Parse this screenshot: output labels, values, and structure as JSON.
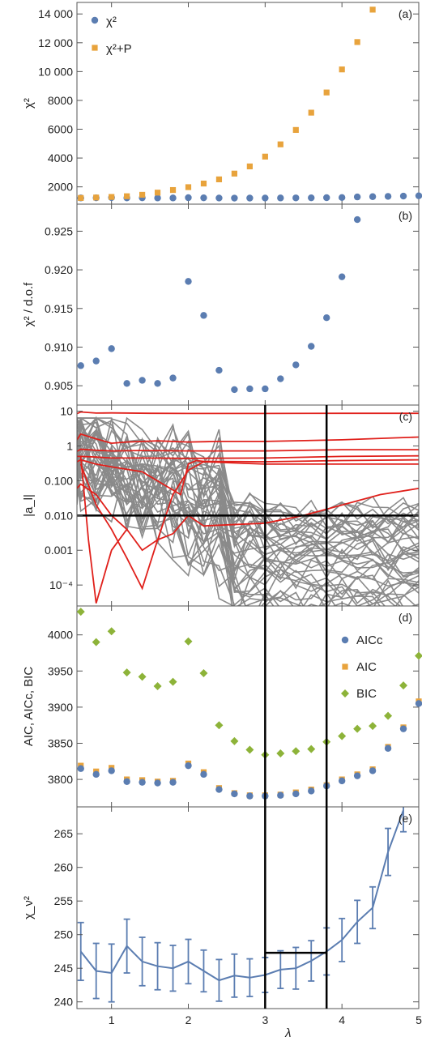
{
  "chart_data": [
    {
      "id": "a",
      "type": "scatter",
      "panel_label": "(a)",
      "ylabel": "χ²",
      "xlim": [
        0.55,
        5.0
      ],
      "ylim": [
        800,
        14800
      ],
      "yticks": [
        2000,
        4000,
        6000,
        8000,
        10000,
        12000,
        14000
      ],
      "ytick_labels": [
        "2000",
        "4000",
        "6000",
        "8000",
        "10 000",
        "12 000",
        "14 000"
      ],
      "legend_position": "top-left",
      "series": [
        {
          "name": "χ²",
          "marker": "circle",
          "color": "#5B7DB1",
          "x": [
            0.6,
            0.8,
            1.0,
            1.2,
            1.4,
            1.6,
            1.8,
            2.0,
            2.2,
            2.4,
            2.6,
            2.8,
            3.0,
            3.2,
            3.4,
            3.6,
            3.8,
            4.0,
            4.2,
            4.4,
            4.6,
            4.8,
            5.0
          ],
          "y": [
            1230,
            1240,
            1255,
            1235,
            1240,
            1230,
            1230,
            1250,
            1240,
            1225,
            1220,
            1222,
            1225,
            1230,
            1235,
            1240,
            1250,
            1260,
            1300,
            1320,
            1340,
            1360,
            1380
          ]
        },
        {
          "name": "χ²+P",
          "marker": "square",
          "color": "#E8A33C",
          "x": [
            0.6,
            0.8,
            1.0,
            1.2,
            1.4,
            1.6,
            1.8,
            2.0,
            2.2,
            2.4,
            2.6,
            2.8,
            3.0,
            3.2,
            3.4,
            3.6,
            3.8,
            4.0,
            4.2,
            4.4
          ],
          "y": [
            1230,
            1260,
            1300,
            1350,
            1450,
            1600,
            1780,
            1980,
            2230,
            2520,
            2920,
            3420,
            4100,
            4950,
            5950,
            7150,
            8550,
            10150,
            12050,
            14300
          ]
        }
      ]
    },
    {
      "id": "b",
      "type": "scatter",
      "panel_label": "(b)",
      "ylabel": "χ² / d.o.f",
      "xlim": [
        0.55,
        5.0
      ],
      "ylim": [
        0.9025,
        0.9285
      ],
      "yticks": [
        0.905,
        0.91,
        0.915,
        0.92,
        0.925
      ],
      "ytick_labels": [
        "0.905",
        "0.910",
        "0.915",
        "0.920",
        "0.925"
      ],
      "series": [
        {
          "marker": "circle",
          "color": "#5B7DB1",
          "x": [
            0.6,
            0.8,
            1.0,
            1.2,
            1.4,
            1.6,
            1.8,
            2.0,
            2.2,
            2.4,
            2.6,
            2.8,
            3.0,
            3.2,
            3.4,
            3.6,
            3.8,
            4.0,
            4.2
          ],
          "y": [
            0.9076,
            0.9082,
            0.9098,
            0.9053,
            0.9057,
            0.9053,
            0.906,
            0.9185,
            0.9141,
            0.907,
            0.9045,
            0.9046,
            0.9046,
            0.9059,
            0.9077,
            0.9101,
            0.9138,
            0.9191,
            0.9265
          ]
        }
      ]
    },
    {
      "id": "c",
      "type": "line",
      "panel_label": "(c)",
      "ylabel": "|a_l|",
      "yscale": "log",
      "xlim": [
        0.55,
        5.0
      ],
      "ylim": [
        2.5e-05,
        15
      ],
      "yticks": [
        0.0001,
        0.001,
        0.01,
        0.1,
        1,
        10
      ],
      "ytick_labels": [
        "10⁻⁴",
        "0.001",
        "0.010",
        "0.100",
        "1",
        "10"
      ],
      "threshold_y": 0.01,
      "vlines_x": [
        3.0,
        3.8
      ],
      "gray_line_count": 40,
      "red_lines": [
        {
          "x": [
            0.55,
            0.6,
            0.8,
            1.0,
            1.5,
            2.0,
            3.0,
            4.0,
            5.0
          ],
          "y": [
            8.5,
            9.5,
            8.8,
            8.9,
            8.7,
            8.6,
            8.6,
            8.7,
            8.7
          ]
        },
        {
          "x": [
            0.55,
            0.6,
            0.8,
            1.0,
            1.2,
            1.6,
            2.0,
            2.4,
            3.0,
            4.0,
            5.0
          ],
          "y": [
            1.5,
            2.2,
            1.6,
            1.2,
            1.3,
            1.4,
            1.3,
            1.35,
            1.35,
            1.5,
            1.8
          ]
        },
        {
          "x": [
            0.55,
            0.6,
            0.8,
            1.0,
            1.4,
            2.0,
            3.0,
            4.0,
            5.0
          ],
          "y": [
            0.7,
            0.8,
            0.75,
            0.72,
            0.74,
            0.72,
            0.72,
            0.78,
            0.78
          ]
        },
        {
          "x": [
            0.55,
            0.6,
            0.8,
            1.0,
            1.4,
            2.0,
            3.0,
            4.0,
            5.0
          ],
          "y": [
            0.5,
            0.5,
            0.48,
            0.45,
            0.45,
            0.44,
            0.45,
            0.5,
            0.52
          ]
        },
        {
          "x": [
            0.55,
            0.6,
            0.8,
            1.0,
            1.4,
            1.9,
            2.0,
            2.1,
            2.2,
            3.0,
            4.0,
            5.0
          ],
          "y": [
            0.35,
            0.4,
            0.3,
            0.25,
            0.18,
            0.04,
            0.3,
            0.38,
            0.36,
            0.35,
            0.38,
            0.4
          ]
        },
        {
          "x": [
            0.55,
            0.6,
            0.8,
            1.0,
            1.2,
            1.4,
            1.6,
            1.8,
            2.0,
            2.2,
            3.0,
            3.5,
            4.0,
            4.5,
            5.0
          ],
          "y": [
            0.06,
            0.08,
            0.04,
            0.01,
            0.004,
            0.001,
            0.002,
            0.003,
            0.01,
            0.005,
            0.006,
            0.01,
            0.02,
            0.04,
            0.06
          ]
        },
        {
          "x": [
            0.6,
            0.8,
            1.0,
            1.2,
            1.4,
            1.6,
            1.8,
            2.0,
            2.2,
            3.0,
            4.0,
            5.0
          ],
          "y": [
            0.3,
            0.02,
            0.004,
            0.0006,
            8e-05,
            0.002,
            0.04,
            0.2,
            0.35,
            0.3,
            0.3,
            0.3
          ]
        },
        {
          "x": [
            0.6,
            0.7,
            0.8,
            1.0,
            1.2
          ],
          "y": [
            0.5,
            0.002,
            3e-05,
            0.001,
            0.004
          ]
        }
      ]
    },
    {
      "id": "d",
      "type": "scatter",
      "panel_label": "(d)",
      "ylabel": "AIC, AICc, BIC",
      "xlim": [
        0.55,
        5.0
      ],
      "ylim": [
        3762,
        4040
      ],
      "yticks": [
        3800,
        3850,
        3900,
        3950,
        4000
      ],
      "ytick_labels": [
        "3800",
        "3850",
        "3900",
        "3950",
        "4000"
      ],
      "legend_position": "top-right",
      "series": [
        {
          "name": "AICc",
          "marker": "circle",
          "color": "#5B7DB1",
          "x": [
            0.6,
            0.8,
            1.0,
            1.2,
            1.4,
            1.6,
            1.8,
            2.0,
            2.2,
            2.4,
            2.6,
            2.8,
            3.0,
            3.2,
            3.4,
            3.6,
            3.8,
            4.0,
            4.2,
            4.4,
            4.6,
            4.8,
            5.0
          ],
          "y": [
            3815,
            3807,
            3812,
            3797,
            3796,
            3795,
            3796,
            3819,
            3807,
            3786,
            3780,
            3777,
            3777,
            3778,
            3780,
            3784,
            3791,
            3798,
            3805,
            3812,
            3843,
            3870,
            3905
          ]
        },
        {
          "name": "AIC",
          "marker": "square",
          "color": "#E8A33C",
          "x": [
            0.6,
            0.8,
            1.0,
            1.2,
            1.4,
            1.6,
            1.8,
            2.0,
            2.2,
            2.4,
            2.6,
            2.8,
            3.0,
            3.2,
            3.4,
            3.6,
            3.8,
            4.0,
            4.2,
            4.4,
            4.6,
            4.8,
            5.0
          ],
          "y": [
            3819,
            3811,
            3816,
            3800,
            3799,
            3797,
            3798,
            3822,
            3810,
            3788,
            3781,
            3778,
            3778,
            3779,
            3782,
            3786,
            3792,
            3800,
            3807,
            3814,
            3845,
            3872,
            3908
          ]
        },
        {
          "name": "BIC",
          "marker": "diamond",
          "color": "#8DB339",
          "x": [
            0.6,
            0.8,
            1.0,
            1.2,
            1.4,
            1.6,
            1.8,
            2.0,
            2.2,
            2.4,
            2.6,
            2.8,
            3.0,
            3.2,
            3.4,
            3.6,
            3.8,
            4.0,
            4.2,
            4.4,
            4.6,
            4.8,
            5.0
          ],
          "y": [
            4032,
            3990,
            4005,
            3948,
            3942,
            3929,
            3935,
            3991,
            3947,
            3875,
            3853,
            3841,
            3834,
            3836,
            3839,
            3842,
            3852,
            3860,
            3870,
            3874,
            3888,
            3930,
            3971
          ]
        }
      ]
    },
    {
      "id": "e",
      "type": "line",
      "panel_label": "(e)",
      "ylabel": "χ_ν²",
      "xlabel": "λ",
      "xlim": [
        0.55,
        5.0
      ],
      "ylim": [
        239,
        269
      ],
      "yticks": [
        240,
        245,
        250,
        255,
        260,
        265
      ],
      "ytick_labels": [
        "240",
        "245",
        "250",
        "255",
        "260",
        "265"
      ],
      "xticks": [
        1,
        2,
        3,
        4,
        5
      ],
      "xtick_labels": [
        "1",
        "2",
        "3",
        "4",
        "5"
      ],
      "vlines_x": [
        3.0,
        3.8
      ],
      "hline": {
        "x": [
          3.0,
          3.8
        ],
        "y": 247.3
      },
      "series": [
        {
          "color": "#5B7DB1",
          "x": [
            0.6,
            0.8,
            1.0,
            1.2,
            1.4,
            1.6,
            1.8,
            2.0,
            2.2,
            2.4,
            2.6,
            2.8,
            3.0,
            3.2,
            3.4,
            3.6,
            3.8,
            4.0,
            4.2,
            4.4,
            4.6,
            4.8
          ],
          "y": [
            247.5,
            244.6,
            244.3,
            248.3,
            246.0,
            245.3,
            245.0,
            246.0,
            244.6,
            243.2,
            243.9,
            243.6,
            244.0,
            244.8,
            245.0,
            246.1,
            247.5,
            249.2,
            251.9,
            254.0,
            262.3,
            268.5
          ],
          "err": [
            4.3,
            4.1,
            4.3,
            4.0,
            3.6,
            3.5,
            3.4,
            3.3,
            3.1,
            3.1,
            3.2,
            2.8,
            2.6,
            2.8,
            3.1,
            3.0,
            3.5,
            3.2,
            3.2,
            3.1,
            3.5,
            3.2
          ]
        }
      ]
    }
  ]
}
